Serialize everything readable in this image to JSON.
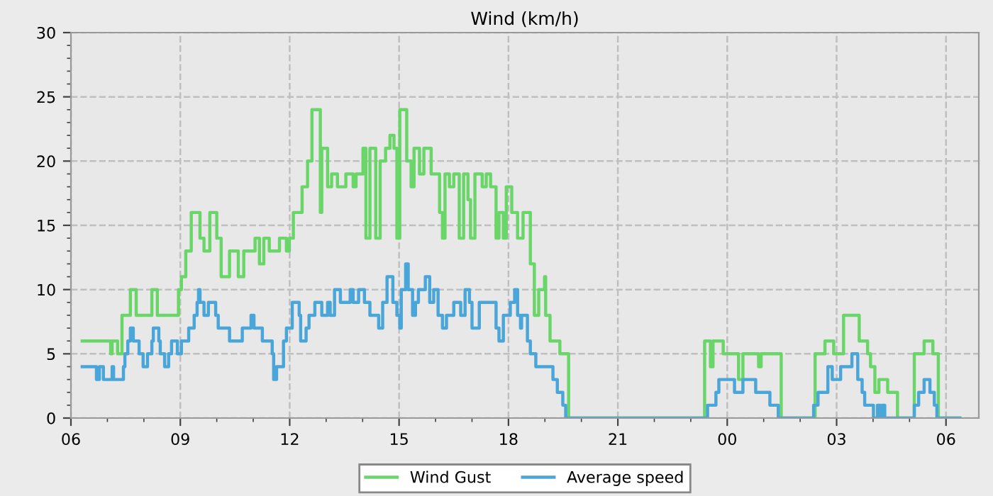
{
  "chart_data": {
    "type": "step",
    "title": "Wind (km/h)",
    "xlim": [
      6,
      30.9
    ],
    "ylim": [
      0,
      30
    ],
    "xticks": [
      {
        "value": 6,
        "label": "06"
      },
      {
        "value": 7,
        "label": null
      },
      {
        "value": 8,
        "label": null
      },
      {
        "value": 9,
        "label": "09"
      },
      {
        "value": 10,
        "label": null
      },
      {
        "value": 11,
        "label": null
      },
      {
        "value": 12,
        "label": "12"
      },
      {
        "value": 13,
        "label": null
      },
      {
        "value": 14,
        "label": null
      },
      {
        "value": 15,
        "label": "15"
      },
      {
        "value": 16,
        "label": null
      },
      {
        "value": 17,
        "label": null
      },
      {
        "value": 18,
        "label": "18"
      },
      {
        "value": 19,
        "label": null
      },
      {
        "value": 20,
        "label": null
      },
      {
        "value": 21,
        "label": "21"
      },
      {
        "value": 22,
        "label": null
      },
      {
        "value": 23,
        "label": null
      },
      {
        "value": 24,
        "label": "00"
      },
      {
        "value": 25,
        "label": null
      },
      {
        "value": 26,
        "label": null
      },
      {
        "value": 27,
        "label": "03"
      },
      {
        "value": 28,
        "label": null
      },
      {
        "value": 29,
        "label": null
      },
      {
        "value": 30,
        "label": "06"
      }
    ],
    "yticks": [
      0,
      {
        "value": 1,
        "label": null
      },
      {
        "value": 2,
        "label": null
      },
      {
        "value": 3,
        "label": null
      },
      {
        "value": 4,
        "label": null
      },
      5,
      {
        "value": 6,
        "label": null
      },
      {
        "value": 7,
        "label": null
      },
      {
        "value": 8,
        "label": null
      },
      {
        "value": 9,
        "label": null
      },
      10,
      {
        "value": 11,
        "label": null
      },
      {
        "value": 12,
        "label": null
      },
      {
        "value": 13,
        "label": null
      },
      {
        "value": 14,
        "label": null
      },
      15,
      {
        "value": 16,
        "label": null
      },
      {
        "value": 17,
        "label": null
      },
      {
        "value": 18,
        "label": null
      },
      {
        "value": 19,
        "label": null
      },
      20,
      {
        "value": 21,
        "label": null
      },
      {
        "value": 22,
        "label": null
      },
      {
        "value": 23,
        "label": null
      },
      {
        "value": 24,
        "label": null
      },
      25,
      {
        "value": 26,
        "label": null
      },
      {
        "value": 27,
        "label": null
      },
      {
        "value": 28,
        "label": null
      },
      {
        "value": 29,
        "label": null
      },
      30
    ],
    "grid": true,
    "legend": "bottom",
    "series": [
      {
        "name": "Wind Gust",
        "color": "#6ad66a",
        "x": [
          6.31,
          7.09,
          7.13,
          7.28,
          7.4,
          7.63,
          7.79,
          8.22,
          8.37,
          8.95,
          9.03,
          9.15,
          9.3,
          9.54,
          9.65,
          9.81,
          10.0,
          10.12,
          10.35,
          10.59,
          10.74,
          11.05,
          11.17,
          11.29,
          11.44,
          11.72,
          11.91,
          11.99,
          12.1,
          12.34,
          12.49,
          12.61,
          12.84,
          12.88,
          13.04,
          13.15,
          13.31,
          13.54,
          13.74,
          13.82,
          14.01,
          14.09,
          14.2,
          14.36,
          14.48,
          14.63,
          14.75,
          14.86,
          14.94,
          15.02,
          15.21,
          15.33,
          15.41,
          15.56,
          15.68,
          15.88,
          16.11,
          16.19,
          16.26,
          16.38,
          16.5,
          16.65,
          16.77,
          16.89,
          16.96,
          17.08,
          17.28,
          17.39,
          17.51,
          17.66,
          17.74,
          17.86,
          17.94,
          18.09,
          18.25,
          18.4,
          18.6,
          18.71,
          18.83,
          18.99,
          19.02,
          19.14,
          19.41,
          19.65,
          23.38,
          23.54,
          23.61,
          23.89,
          24.31,
          24.43,
          24.86,
          24.93,
          25.48,
          26.41,
          26.68,
          26.92,
          27.19,
          27.62,
          27.85,
          27.93,
          28.05,
          28.16,
          28.4,
          28.67,
          29.13,
          29.4,
          29.64,
          29.79,
          30.38
        ],
        "values": [
          6,
          5,
          6,
          5,
          8,
          10,
          8,
          10,
          8,
          10,
          11,
          13,
          16,
          14,
          13,
          16,
          14,
          11,
          13,
          11,
          13,
          14,
          12,
          14,
          13,
          14,
          13,
          14,
          16,
          18,
          20,
          24,
          16,
          21,
          18,
          19,
          18,
          19,
          18,
          19,
          21,
          14,
          21,
          14,
          20,
          21,
          22,
          21,
          14,
          24,
          20,
          18,
          21,
          19,
          21,
          19,
          16,
          14,
          19,
          18,
          19,
          14,
          19,
          17,
          14,
          19,
          18,
          19,
          18,
          14,
          16,
          14,
          18,
          16,
          14,
          16,
          12,
          8,
          10,
          11,
          8,
          6,
          5,
          0,
          6,
          4,
          6,
          5,
          3,
          5,
          4,
          5,
          0,
          5,
          6,
          5,
          8,
          6,
          5,
          4,
          2,
          3,
          2,
          0,
          5,
          6,
          5,
          0,
          0
        ]
      },
      {
        "name": "Average speed",
        "color": "#4aa6d9",
        "x": [
          6.31,
          6.7,
          6.78,
          6.89,
          7.13,
          7.17,
          7.44,
          7.48,
          7.56,
          7.63,
          7.71,
          7.87,
          7.98,
          8.1,
          8.22,
          8.26,
          8.41,
          8.45,
          8.57,
          8.68,
          8.76,
          8.92,
          9.03,
          9.23,
          9.38,
          9.46,
          9.5,
          9.54,
          9.65,
          9.77,
          9.97,
          10.04,
          10.35,
          10.7,
          10.94,
          11.02,
          11.25,
          11.52,
          11.56,
          11.64,
          11.83,
          11.91,
          12.07,
          12.26,
          12.3,
          12.45,
          12.53,
          12.69,
          12.88,
          13.04,
          13.11,
          13.23,
          13.39,
          13.66,
          13.74,
          13.89,
          14.05,
          14.2,
          14.44,
          14.55,
          14.67,
          14.83,
          14.94,
          15.02,
          15.06,
          15.18,
          15.25,
          15.37,
          15.45,
          15.53,
          15.72,
          15.84,
          15.95,
          16.07,
          16.19,
          16.3,
          16.5,
          16.69,
          16.81,
          16.93,
          17.0,
          17.2,
          17.66,
          17.74,
          17.86,
          18.05,
          18.17,
          18.25,
          18.33,
          18.36,
          18.52,
          18.6,
          18.75,
          19.22,
          19.34,
          19.49,
          19.57,
          23.46,
          23.69,
          23.77,
          24.2,
          24.43,
          24.78,
          25.17,
          25.4,
          26.37,
          26.49,
          26.76,
          26.88,
          27.11,
          27.42,
          27.58,
          27.7,
          27.77,
          28.01,
          28.12,
          28.2,
          28.24,
          28.32,
          29.13,
          29.25,
          29.4,
          29.56,
          29.68,
          29.75,
          30.38
        ],
        "values": [
          4,
          3,
          4,
          3,
          4,
          3,
          4,
          5,
          6,
          7,
          6,
          5,
          4,
          5,
          6,
          7,
          6,
          5,
          4,
          5,
          6,
          5,
          6,
          7,
          8,
          9,
          10,
          9,
          8,
          9,
          8,
          7,
          6,
          7,
          8,
          7,
          6,
          5,
          3,
          4,
          6,
          7,
          9,
          8,
          6,
          7,
          8,
          9,
          8,
          9,
          8,
          10,
          9,
          10,
          9,
          10,
          9,
          8,
          7,
          9,
          11,
          9,
          8,
          7,
          10,
          12,
          10,
          8,
          9,
          10,
          11,
          9,
          10,
          8,
          7,
          8,
          9,
          8,
          10,
          9,
          7,
          9,
          7,
          6,
          8,
          9,
          10,
          8,
          7,
          8,
          6,
          5,
          4,
          3,
          2,
          1,
          0,
          1,
          2,
          3,
          2,
          3,
          2,
          1,
          0,
          1,
          2,
          4,
          3,
          4,
          5,
          3,
          2,
          1,
          0,
          1,
          0,
          1,
          0,
          1,
          2,
          3,
          2,
          1,
          0,
          0
        ]
      }
    ]
  }
}
